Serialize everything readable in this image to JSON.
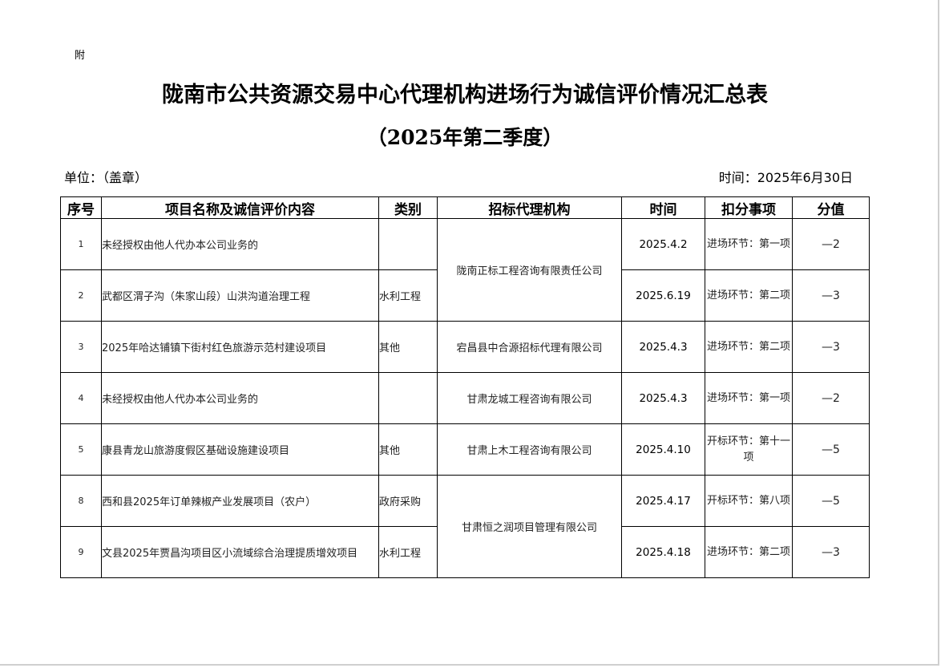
{
  "header": {
    "fu": "附",
    "title": "陇南市公共资源交易中心代理机构进场行为诚信评价情况汇总表",
    "subtitle": "（2025年第二季度）",
    "unit": "单位：（盖章）",
    "time": "时间：2025年6月30日"
  },
  "columns": [
    "序号",
    "项目名称及诚信评价内容",
    "类别",
    "招标代理机构",
    "时间",
    "扣分事项",
    "分值"
  ],
  "rows": [
    {
      "no": "1",
      "project": "未经授权由他人代办本公司业务的",
      "category": "",
      "agency": "陇南正标工程咨询有限责任公司",
      "date": "2025.4.2",
      "item": "进场环节：第一项",
      "score": "—2"
    },
    {
      "no": "2",
      "project": "武都区渭子沟（朱家山段）山洪沟道治理工程",
      "category": "水利工程",
      "agency": "",
      "date": "2025.6.19",
      "item": "进场环节：第二项",
      "score": "—3"
    },
    {
      "no": "3",
      "project": "2025年哈达铺镇下街村红色旅游示范村建设项目",
      "category": "其他",
      "agency": "宕昌县中合源招标代理有限公司",
      "date": "2025.4.3",
      "item": "进场环节：第二项",
      "score": "—3"
    },
    {
      "no": "4",
      "project": "未经授权由他人代办本公司业务的",
      "category": "",
      "agency": "甘肃龙城工程咨询有限公司",
      "date": "2025.4.3",
      "item": "进场环节：第一项",
      "score": "—2"
    },
    {
      "no": "5",
      "project": "康县青龙山旅游度假区基础设施建设项目",
      "category": "其他",
      "agency": "甘肃上木工程咨询有限公司",
      "date": "2025.4.10",
      "item": "开标环节：第十一项",
      "score": "—5"
    },
    {
      "no": "8",
      "project": "西和县2025年订单辣椒产业发展项目（农户）",
      "category": "政府采购",
      "agency": "甘肃恒之润项目管理有限公司",
      "date": "2025.4.17",
      "item": "开标环节：第八项",
      "score": "—5"
    },
    {
      "no": "9",
      "project": "文县2025年贾昌沟项目区小流域综合治理提质增效项目",
      "category": "水利工程",
      "agency": "",
      "date": "2025.4.18",
      "item": "进场环节：第二项",
      "score": "—3"
    }
  ]
}
